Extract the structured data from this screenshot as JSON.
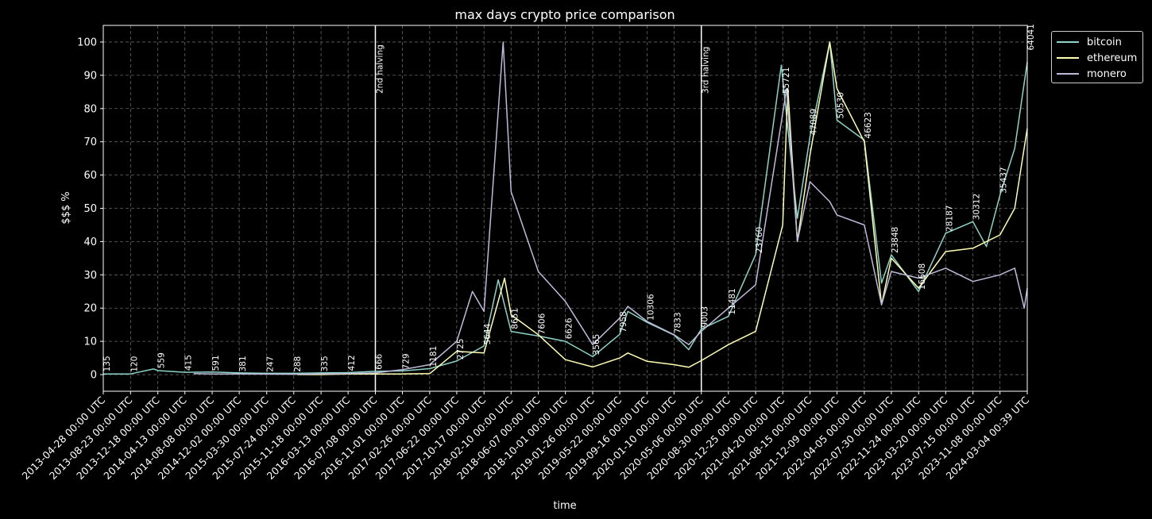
{
  "chart_data": {
    "type": "line",
    "title": "max days crypto price comparison",
    "xlabel": "time",
    "ylabel": "$$$ %",
    "ylim": [
      -5,
      105
    ],
    "yticks": [
      0,
      10,
      20,
      30,
      40,
      50,
      60,
      70,
      80,
      90,
      100
    ],
    "grid": true,
    "legend_position": "outside-top-right",
    "x_start": "2013-04-28",
    "x_end": "2024-03-04",
    "x_tick_labels": [
      "2013-04-28 00:00 UTC",
      "2013-08-23 00:00 UTC",
      "2013-12-18 00:00 UTC",
      "2014-04-13 00:00 UTC",
      "2014-08-08 00:00 UTC",
      "2014-12-02 00:00 UTC",
      "2015-03-30 00:00 UTC",
      "2015-07-24 00:00 UTC",
      "2015-11-18 00:00 UTC",
      "2016-03-13 00:00 UTC",
      "2016-07-08 00:00 UTC",
      "2016-11-01 00:00 UTC",
      "2017-02-26 00:00 UTC",
      "2017-06-22 00:00 UTC",
      "2017-10-17 00:00 UTC",
      "2018-02-10 00:00 UTC",
      "2018-06-07 00:00 UTC",
      "2018-10-01 00:00 UTC",
      "2019-01-26 00:00 UTC",
      "2019-05-22 00:00 UTC",
      "2019-09-16 00:00 UTC",
      "2020-01-10 00:00 UTC",
      "2020-05-06 00:00 UTC",
      "2020-08-30 00:00 UTC",
      "2020-12-25 00:00 UTC",
      "2021-04-20 00:00 UTC",
      "2021-08-15 00:00 UTC",
      "2021-12-09 00:00 UTC",
      "2022-04-05 00:00 UTC",
      "2022-07-30 00:00 UTC",
      "2022-11-24 00:00 UTC",
      "2023-03-20 00:00 UTC",
      "2023-07-15 00:00 UTC",
      "2023-11-08 00:00 UTC",
      "2024-03-04 00:39 UTC"
    ],
    "vlines": [
      {
        "label": "2nd halving",
        "x": "2016-07-08"
      },
      {
        "label": "3rd halving",
        "x": "2020-05-06"
      }
    ],
    "price_labels": [
      {
        "text": "135",
        "x": "2013-04-28",
        "y": 0.4
      },
      {
        "text": "120",
        "x": "2013-08-23",
        "y": 0.3
      },
      {
        "text": "559",
        "x": "2013-12-18",
        "y": 1.4
      },
      {
        "text": "415",
        "x": "2014-04-13",
        "y": 0.7
      },
      {
        "text": "591",
        "x": "2014-08-08",
        "y": 0.6
      },
      {
        "text": "381",
        "x": "2014-12-02",
        "y": 0.4
      },
      {
        "text": "247",
        "x": "2015-03-30",
        "y": 0.3
      },
      {
        "text": "288",
        "x": "2015-07-24",
        "y": 0.3
      },
      {
        "text": "335",
        "x": "2015-11-18",
        "y": 0.4
      },
      {
        "text": "412",
        "x": "2016-03-13",
        "y": 0.6
      },
      {
        "text": "666",
        "x": "2016-07-08",
        "y": 1.0
      },
      {
        "text": "729",
        "x": "2016-11-01",
        "y": 1.1
      },
      {
        "text": "1181",
        "x": "2017-02-26",
        "y": 1.8
      },
      {
        "text": "2725",
        "x": "2017-06-22",
        "y": 4.0
      },
      {
        "text": "5644",
        "x": "2017-10-17",
        "y": 8.5
      },
      {
        "text": "8651",
        "x": "2018-02-10",
        "y": 13.2
      },
      {
        "text": "7606",
        "x": "2018-06-07",
        "y": 11.6
      },
      {
        "text": "6626",
        "x": "2018-10-01",
        "y": 10.2
      },
      {
        "text": "3565",
        "x": "2019-01-26",
        "y": 5.4
      },
      {
        "text": "7958",
        "x": "2019-05-22",
        "y": 12.2
      },
      {
        "text": "10306",
        "x": "2019-09-16",
        "y": 15.8
      },
      {
        "text": "7833",
        "x": "2020-01-10",
        "y": 11.9
      },
      {
        "text": "9003",
        "x": "2020-05-06",
        "y": 13.7
      },
      {
        "text": "11481",
        "x": "2020-08-30",
        "y": 17.5
      },
      {
        "text": "23760",
        "x": "2020-12-25",
        "y": 36.0
      },
      {
        "text": "55721",
        "x": "2021-04-20",
        "y": 84.0
      },
      {
        "text": "47089",
        "x": "2021-08-15",
        "y": 71.5
      },
      {
        "text": "50530",
        "x": "2021-12-09",
        "y": 76.5
      },
      {
        "text": "46623",
        "x": "2022-04-05",
        "y": 70.5
      },
      {
        "text": "23848",
        "x": "2022-07-30",
        "y": 36.0
      },
      {
        "text": "16608",
        "x": "2022-11-24",
        "y": 25.0
      },
      {
        "text": "28187",
        "x": "2023-03-20",
        "y": 42.5
      },
      {
        "text": "30312",
        "x": "2023-07-15",
        "y": 46.0
      },
      {
        "text": "35437",
        "x": "2023-11-08",
        "y": 54.0
      },
      {
        "text": "64041",
        "x": "2024-03-04",
        "y": 97.0
      }
    ],
    "series": [
      {
        "name": "bitcoin",
        "color": "#8dd3c7",
        "points": [
          [
            "2013-04-28",
            0.2
          ],
          [
            "2013-08-23",
            0.2
          ],
          [
            "2013-11-30",
            1.7
          ],
          [
            "2013-12-18",
            1.2
          ],
          [
            "2014-04-13",
            0.7
          ],
          [
            "2014-08-08",
            0.8
          ],
          [
            "2014-12-02",
            0.5
          ],
          [
            "2015-03-30",
            0.4
          ],
          [
            "2015-07-24",
            0.4
          ],
          [
            "2015-11-18",
            0.5
          ],
          [
            "2016-03-13",
            0.6
          ],
          [
            "2016-07-08",
            1.0
          ],
          [
            "2016-11-01",
            1.1
          ],
          [
            "2017-02-26",
            1.8
          ],
          [
            "2017-06-22",
            4.1
          ],
          [
            "2017-10-17",
            8.6
          ],
          [
            "2017-12-17",
            28.5
          ],
          [
            "2018-02-10",
            13.0
          ],
          [
            "2018-06-07",
            11.6
          ],
          [
            "2018-10-01",
            10.0
          ],
          [
            "2019-01-26",
            5.4
          ],
          [
            "2019-05-22",
            12.1
          ],
          [
            "2019-06-26",
            19.0
          ],
          [
            "2019-09-16",
            15.7
          ],
          [
            "2020-01-10",
            11.9
          ],
          [
            "2020-03-13",
            7.5
          ],
          [
            "2020-05-06",
            13.7
          ],
          [
            "2020-08-30",
            17.5
          ],
          [
            "2020-12-25",
            36.1
          ],
          [
            "2021-04-14",
            93.0
          ],
          [
            "2021-06-22",
            47.0
          ],
          [
            "2021-08-15",
            71.5
          ],
          [
            "2021-11-08",
            100.0
          ],
          [
            "2021-12-09",
            76.5
          ],
          [
            "2022-04-05",
            70.5
          ],
          [
            "2022-06-18",
            27.5
          ],
          [
            "2022-07-30",
            36.0
          ],
          [
            "2022-11-24",
            25.0
          ],
          [
            "2023-03-20",
            42.5
          ],
          [
            "2023-07-15",
            46.0
          ],
          [
            "2023-09-11",
            38.5
          ],
          [
            "2023-11-08",
            54.0
          ],
          [
            "2024-01-10",
            68.0
          ],
          [
            "2024-03-04",
            94.0
          ]
        ]
      },
      {
        "name": "ethereum",
        "color": "#ffffb3",
        "points": [
          [
            "2015-08-08",
            0.0
          ],
          [
            "2015-11-18",
            0.0
          ],
          [
            "2016-03-13",
            0.2
          ],
          [
            "2016-07-08",
            0.2
          ],
          [
            "2016-11-01",
            0.2
          ],
          [
            "2017-02-26",
            0.3
          ],
          [
            "2017-06-22",
            7.0
          ],
          [
            "2017-10-17",
            6.5
          ],
          [
            "2018-01-13",
            29.0
          ],
          [
            "2018-02-10",
            18.0
          ],
          [
            "2018-06-07",
            12.0
          ],
          [
            "2018-10-01",
            4.5
          ],
          [
            "2019-01-26",
            2.3
          ],
          [
            "2019-05-22",
            5.0
          ],
          [
            "2019-06-26",
            6.5
          ],
          [
            "2019-09-16",
            4.0
          ],
          [
            "2020-01-10",
            3.0
          ],
          [
            "2020-03-13",
            2.2
          ],
          [
            "2020-05-06",
            4.2
          ],
          [
            "2020-08-30",
            9.0
          ],
          [
            "2020-12-25",
            13.0
          ],
          [
            "2021-04-20",
            45.0
          ],
          [
            "2021-05-12, 00:00",
            86.0
          ],
          [
            "2021-06-22",
            40.0
          ],
          [
            "2021-08-15",
            66.0
          ],
          [
            "2021-11-08",
            100.0
          ],
          [
            "2021-12-09",
            86.0
          ],
          [
            "2022-04-05",
            70.0
          ],
          [
            "2022-06-18",
            21.0
          ],
          [
            "2022-07-30",
            35.0
          ],
          [
            "2022-11-24",
            26.0
          ],
          [
            "2023-03-20",
            37.0
          ],
          [
            "2023-07-15",
            38.0
          ],
          [
            "2023-11-08",
            42.0
          ],
          [
            "2024-01-10",
            50.0
          ],
          [
            "2024-03-04",
            74.0
          ]
        ]
      },
      {
        "name": "monero",
        "color": "#bebada",
        "points": [
          [
            "2014-05-21",
            0.3
          ],
          [
            "2014-08-08",
            0.2
          ],
          [
            "2014-12-02",
            0.2
          ],
          [
            "2015-07-24",
            0.1
          ],
          [
            "2016-03-13",
            0.3
          ],
          [
            "2016-07-08",
            0.5
          ],
          [
            "2016-11-01",
            1.5
          ],
          [
            "2017-02-26",
            3.0
          ],
          [
            "2017-06-22",
            10.0
          ],
          [
            "2017-08-28",
            25.0
          ],
          [
            "2017-10-17",
            19.0
          ],
          [
            "2018-01-07",
            100.0
          ],
          [
            "2018-02-10",
            55.0
          ],
          [
            "2018-06-07",
            31.0
          ],
          [
            "2018-10-01",
            22.0
          ],
          [
            "2019-01-26",
            9.0
          ],
          [
            "2019-05-22",
            17.0
          ],
          [
            "2019-06-26",
            20.5
          ],
          [
            "2019-09-16",
            16.0
          ],
          [
            "2020-01-10",
            12.0
          ],
          [
            "2020-03-13",
            9.0
          ],
          [
            "2020-05-06",
            13.0
          ],
          [
            "2020-08-30",
            20.0
          ],
          [
            "2020-12-25",
            27.0
          ],
          [
            "2021-05-07",
            86.0
          ],
          [
            "2021-06-22",
            40.0
          ],
          [
            "2021-08-15",
            58.0
          ],
          [
            "2021-11-08",
            52.0
          ],
          [
            "2021-12-09",
            48.0
          ],
          [
            "2022-04-05",
            45.0
          ],
          [
            "2022-06-18",
            21.0
          ],
          [
            "2022-07-30",
            31.0
          ],
          [
            "2022-11-24",
            29.0
          ],
          [
            "2023-03-20",
            32.0
          ],
          [
            "2023-07-15",
            28.0
          ],
          [
            "2023-11-08",
            30.0
          ],
          [
            "2024-01-10",
            32.0
          ],
          [
            "2024-02-20",
            20.0
          ],
          [
            "2024-03-04",
            26.0
          ]
        ]
      }
    ]
  }
}
